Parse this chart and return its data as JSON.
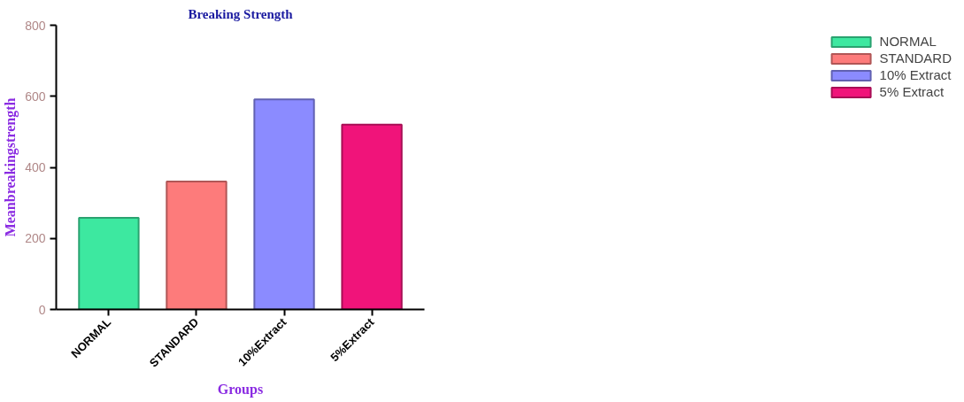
{
  "chart_data": {
    "type": "bar",
    "title": "Breaking Strength",
    "xlabel": "Groups",
    "ylabel": "Meanbreakingstrength",
    "categories": [
      "NORMAL",
      "STANDARD",
      "10%Extract",
      "5%Extract"
    ],
    "series": [
      {
        "name": "NORMAL",
        "color": "#3de8a0",
        "values": [
          258,
          null,
          null,
          null
        ]
      },
      {
        "name": "STANDARD",
        "color": "#fd7b7b",
        "values": [
          null,
          360,
          null,
          null
        ]
      },
      {
        "name": "10% Extract",
        "color": "#8b8bff",
        "values": [
          null,
          null,
          591,
          null
        ]
      },
      {
        "name": "5% Extract",
        "color": "#f0147a",
        "values": [
          null,
          null,
          null,
          520
        ]
      }
    ],
    "ylim": [
      0,
      800
    ],
    "yticks": [
      0,
      200,
      400,
      600,
      800
    ],
    "legend": "top right"
  }
}
